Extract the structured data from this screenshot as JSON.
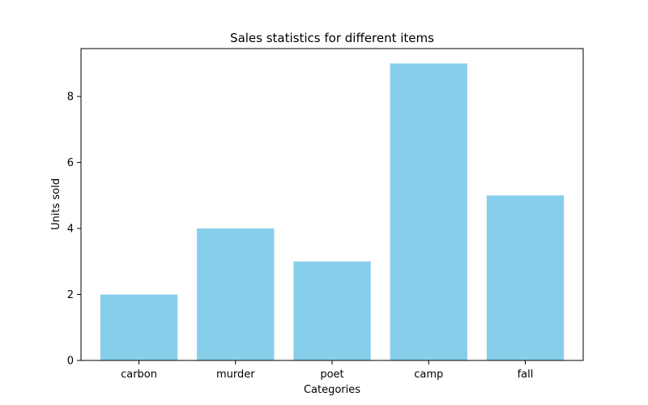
{
  "chart_data": {
    "type": "bar",
    "title": "Sales statistics for different items",
    "xlabel": "Categories",
    "ylabel": "Units sold",
    "categories": [
      "carbon",
      "murder",
      "poet",
      "camp",
      "fall"
    ],
    "values": [
      2,
      4,
      3,
      9,
      5
    ],
    "ylim": [
      0,
      9.45
    ],
    "yticks": [
      0,
      2,
      4,
      6,
      8
    ],
    "grid": false,
    "bar_color": "#87CEEB"
  }
}
